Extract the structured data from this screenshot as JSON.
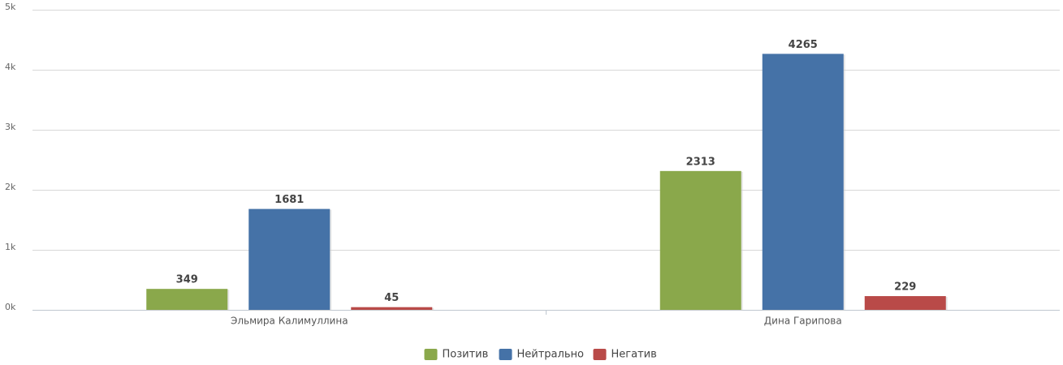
{
  "chart_data": {
    "type": "bar",
    "categories": [
      "Эльмира Калимуллина",
      "Дина Гарипова"
    ],
    "series": [
      {
        "name": "Позитив",
        "color": "#8aa84b",
        "values": [
          349,
          2313
        ]
      },
      {
        "name": "Нейтрально",
        "color": "#4572a7",
        "values": [
          1681,
          4265
        ]
      },
      {
        "name": "Негатив",
        "color": "#b94a48",
        "values": [
          45,
          229
        ]
      }
    ],
    "ylim": [
      0,
      5000
    ],
    "yticks": [
      {
        "value": 0,
        "label": "0k"
      },
      {
        "value": 1000,
        "label": "1k"
      },
      {
        "value": 2000,
        "label": "2k"
      },
      {
        "value": 3000,
        "label": "3k"
      },
      {
        "value": 4000,
        "label": "4k"
      },
      {
        "value": 5000,
        "label": "5k"
      }
    ],
    "grid": true,
    "legend": "bottom"
  }
}
